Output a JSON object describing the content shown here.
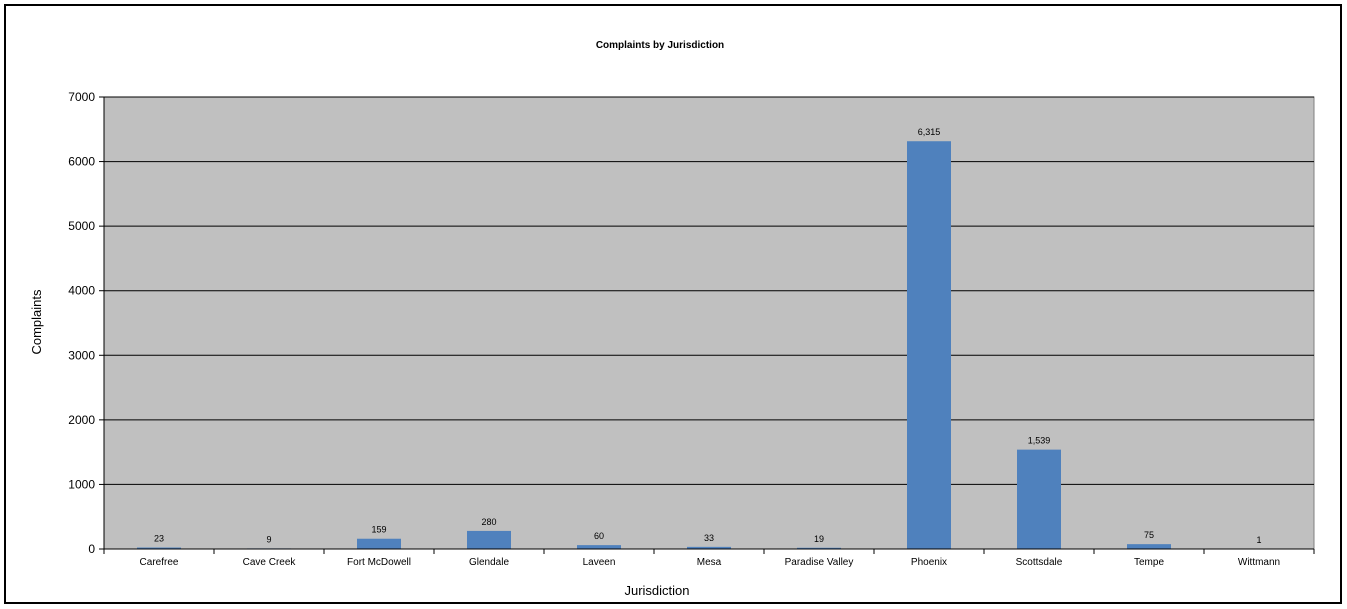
{
  "chart_data": {
    "type": "bar",
    "title": "Complaints by Jurisdiction",
    "xlabel": "Jurisdiction",
    "ylabel": "Complaints",
    "categories": [
      "Carefree",
      "Cave Creek",
      "Fort McDowell",
      "Glendale",
      "Laveen",
      "Mesa",
      "Paradise Valley",
      "Phoenix",
      "Scottsdale",
      "Tempe",
      "Wittmann"
    ],
    "values": [
      23,
      9,
      159,
      280,
      60,
      33,
      19,
      6315,
      1539,
      75,
      1
    ],
    "data_labels": [
      "23",
      "9",
      "159",
      "280",
      "60",
      "33",
      "19",
      "6,315",
      "1,539",
      "75",
      "1"
    ],
    "ylim": [
      0,
      7000
    ],
    "yticks": [
      0,
      1000,
      2000,
      3000,
      4000,
      5000,
      6000,
      7000
    ],
    "ytick_labels": [
      "0",
      "1000",
      "2000",
      "3000",
      "4000",
      "5000",
      "6000",
      "7000"
    ],
    "grid": true,
    "legend": "none",
    "colors": {
      "bar": "#4F81BD",
      "plot_background": "#C0C0C0",
      "gridline": "#000000",
      "border": "#000000"
    }
  }
}
